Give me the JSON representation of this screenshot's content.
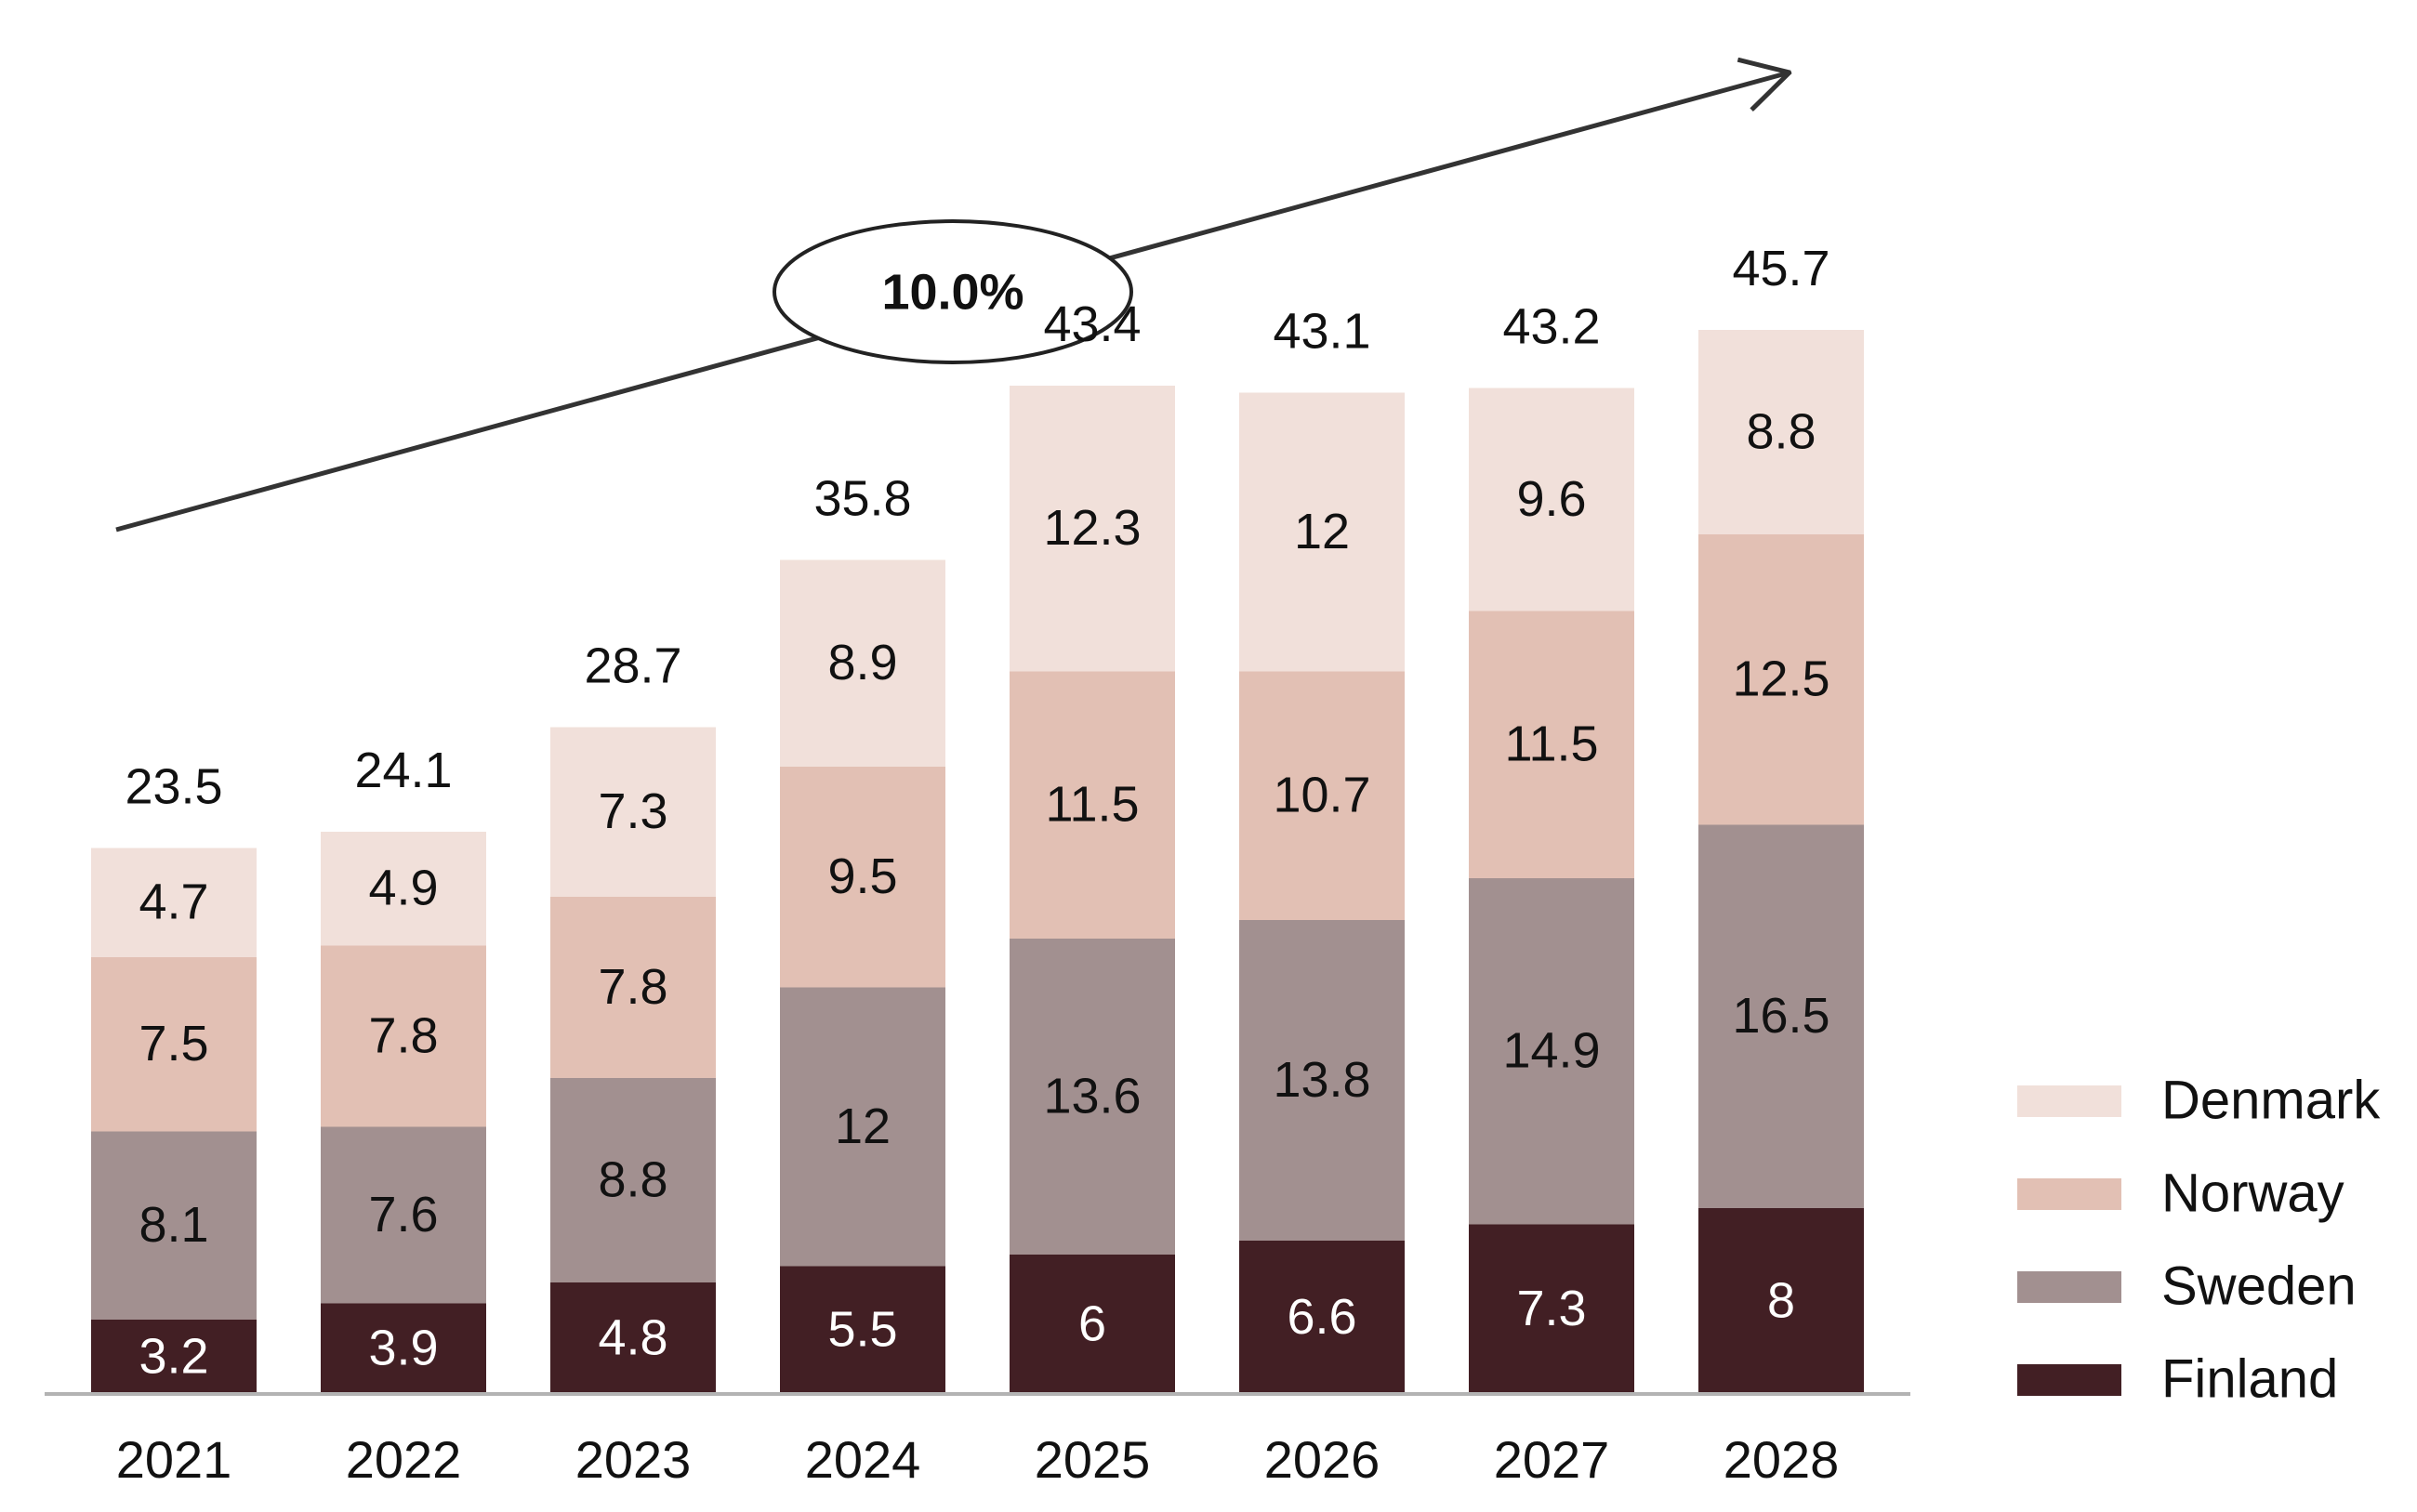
{
  "chart_data": {
    "type": "bar",
    "stacked": true,
    "categories": [
      "2021",
      "2022",
      "2023",
      "2024",
      "2025",
      "2026",
      "2027",
      "2028"
    ],
    "series": [
      {
        "name": "Finland",
        "color": "#421f24",
        "label_color": "#ffffff",
        "values": [
          3.2,
          3.9,
          4.8,
          5.5,
          6,
          6.6,
          7.3,
          8
        ]
      },
      {
        "name": "Sweden",
        "color": "#a29090",
        "label_color": "#111111",
        "values": [
          8.1,
          7.6,
          8.8,
          12,
          13.6,
          13.8,
          14.9,
          16.5
        ]
      },
      {
        "name": "Norway",
        "color": "#e2c0b4",
        "label_color": "#111111",
        "values": [
          7.5,
          7.8,
          7.8,
          9.5,
          11.5,
          10.7,
          11.5,
          12.5
        ]
      },
      {
        "name": "Denmark",
        "color": "#f1e0da",
        "label_color": "#111111",
        "values": [
          4.7,
          4.9,
          7.3,
          8.9,
          12.3,
          12,
          9.6,
          8.8
        ]
      }
    ],
    "totals": [
      "23.5",
      "24.1",
      "28.7",
      "35.8",
      "43.4",
      "43.1",
      "43.2",
      "45.7"
    ],
    "legend_order": [
      "Denmark",
      "Norway",
      "Sweden",
      "Finland"
    ],
    "legend_position": "bottom-right",
    "annotation": {
      "text": "10.0%",
      "kind": "growth-arrow"
    },
    "ylim": [
      0,
      50
    ],
    "grid": false,
    "title": "",
    "xlabel": "",
    "ylabel": ""
  }
}
